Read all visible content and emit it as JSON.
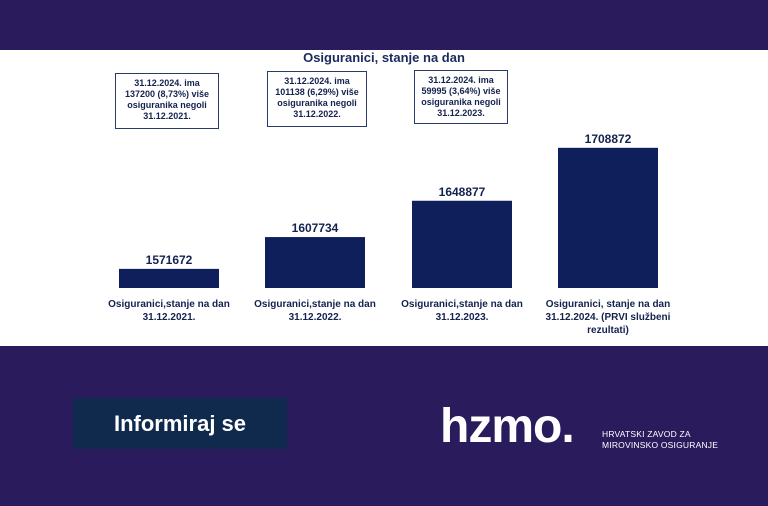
{
  "colors": {
    "band": "#2a1b5d",
    "bar": "#0f1f5c",
    "button": "#0f2a4d"
  },
  "chart_data": {
    "type": "bar",
    "title": "Osiguranici, stanje na dan",
    "categories": [
      "Osiguranici,stanje na dan 31.12.2021.",
      "Osiguranici,stanje na dan 31.12.2022.",
      "Osiguranici,stanje na dan 31.12.2023.",
      "Osiguranici, stanje na dan 31.12.2024. (PRVI službeni rezultati)"
    ],
    "values": [
      1571672,
      1607734,
      1648877,
      1708872
    ],
    "data_labels": [
      "1571672",
      "1607734",
      "1648877",
      "1708872"
    ],
    "ylim": [
      1550000,
      1720000
    ],
    "grid": false,
    "annotations": [
      "31.12.2024. ima 137200 (8,73%) više osiguranika negoli 31.12.2021.",
      "31.12.2024. ima 101138 (6,29%) više osiguranika negoli 31.12.2022.",
      "31.12.2024. ima 59995 (3,64%) više osiguranika negoli 31.12.2023."
    ]
  },
  "cta": {
    "label": "Informiraj se"
  },
  "logo": {
    "wordmark": "hzmo.",
    "tagline_line1": "HRVATSKI ZAVOD ZA",
    "tagline_line2": "MIROVINSKO OSIGURANJE"
  }
}
